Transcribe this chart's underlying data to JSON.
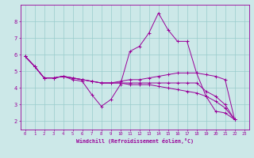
{
  "xlabel": "Windchill (Refroidissement éolien,°C)",
  "background_color": "#cce8e8",
  "grid_color": "#99cccc",
  "line_color": "#990099",
  "xlim": [
    -0.5,
    23.5
  ],
  "ylim": [
    1.5,
    9.0
  ],
  "xticks": [
    0,
    1,
    2,
    3,
    4,
    5,
    6,
    7,
    8,
    9,
    10,
    11,
    12,
    13,
    14,
    15,
    16,
    17,
    18,
    19,
    20,
    21,
    22,
    23
  ],
  "yticks": [
    2,
    3,
    4,
    5,
    6,
    7,
    8
  ],
  "series": [
    {
      "x": [
        0,
        1,
        2,
        3,
        4,
        5,
        6,
        7,
        8,
        9,
        10,
        11,
        12,
        13,
        14,
        15,
        16,
        17,
        18,
        19,
        20,
        21,
        22
      ],
      "y": [
        5.9,
        5.3,
        4.6,
        4.6,
        4.7,
        4.5,
        4.4,
        3.6,
        2.9,
        3.3,
        4.2,
        6.2,
        6.5,
        7.3,
        8.5,
        7.5,
        6.8,
        6.8,
        4.9,
        3.5,
        2.6,
        2.5,
        2.1
      ]
    },
    {
      "x": [
        0,
        1,
        2,
        3,
        4,
        5,
        6,
        7,
        8,
        9,
        10,
        11,
        12,
        13,
        14,
        15,
        16,
        17,
        18,
        19,
        20,
        21,
        22
      ],
      "y": [
        5.9,
        5.3,
        4.6,
        4.6,
        4.7,
        4.6,
        4.5,
        4.4,
        4.3,
        4.3,
        4.4,
        4.5,
        4.5,
        4.6,
        4.7,
        4.8,
        4.9,
        4.9,
        4.9,
        4.8,
        4.7,
        4.5,
        2.1
      ]
    },
    {
      "x": [
        0,
        1,
        2,
        3,
        4,
        5,
        6,
        7,
        8,
        9,
        10,
        11,
        12,
        13,
        14,
        15,
        16,
        17,
        18,
        19,
        20,
        21,
        22
      ],
      "y": [
        5.9,
        5.3,
        4.6,
        4.6,
        4.7,
        4.6,
        4.5,
        4.4,
        4.3,
        4.3,
        4.3,
        4.3,
        4.3,
        4.3,
        4.3,
        4.3,
        4.3,
        4.3,
        4.3,
        3.8,
        3.5,
        3.0,
        2.1
      ]
    },
    {
      "x": [
        0,
        1,
        2,
        3,
        4,
        5,
        6,
        7,
        8,
        9,
        10,
        11,
        12,
        13,
        14,
        15,
        16,
        17,
        18,
        19,
        20,
        21,
        22
      ],
      "y": [
        5.9,
        5.3,
        4.6,
        4.6,
        4.7,
        4.6,
        4.5,
        4.4,
        4.3,
        4.3,
        4.3,
        4.2,
        4.2,
        4.2,
        4.1,
        4.0,
        3.9,
        3.8,
        3.7,
        3.5,
        3.2,
        2.8,
        2.1
      ]
    }
  ]
}
